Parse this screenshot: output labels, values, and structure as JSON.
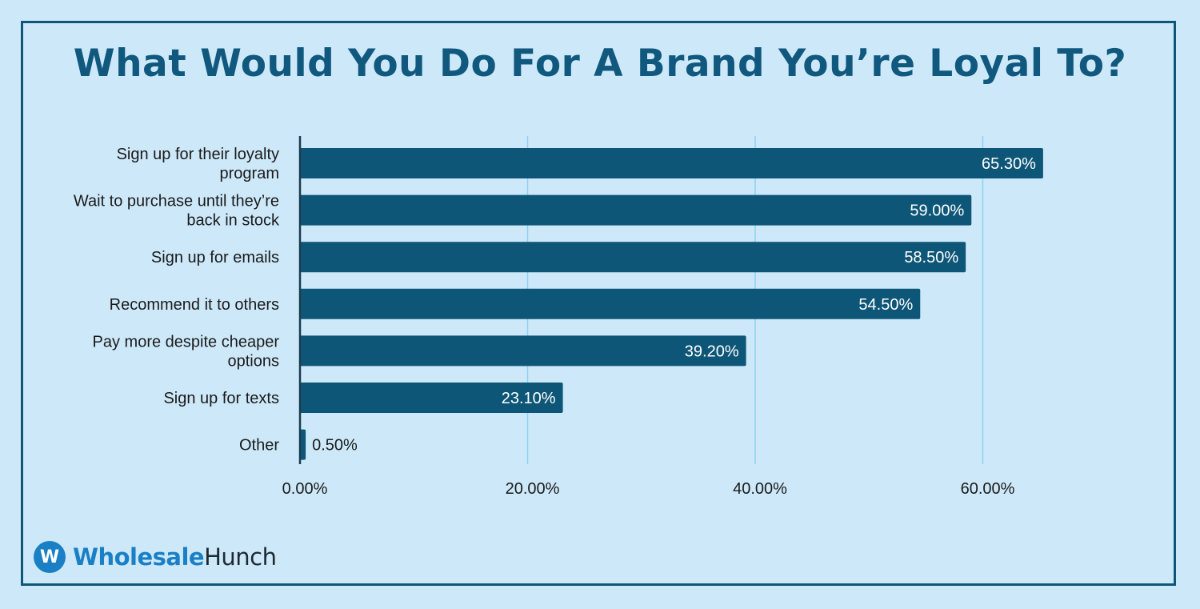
{
  "chart_data": {
    "type": "bar",
    "orientation": "horizontal",
    "title": "What Would You Do For A Brand You’re Loyal To?",
    "xlabel": "",
    "ylabel": "",
    "xlim": [
      0,
      70
    ],
    "x_ticks": [
      0,
      20,
      40,
      60
    ],
    "x_tick_labels": [
      "0.00%",
      "20.00%",
      "40.00%",
      "60.00%"
    ],
    "grid": true,
    "categories": [
      [
        "Sign up for their loyalty",
        "program"
      ],
      [
        "Wait to purchase until they’re",
        "back in stock"
      ],
      [
        "Sign up for emails"
      ],
      [
        "Recommend it to others"
      ],
      [
        "Pay more despite cheaper",
        "options"
      ],
      [
        "Sign up for texts"
      ],
      [
        "Other"
      ]
    ],
    "values": [
      65.3,
      59.0,
      58.5,
      54.5,
      39.2,
      23.1,
      0.5
    ],
    "value_labels": [
      "65.30%",
      "59.00%",
      "58.50%",
      "54.50%",
      "39.20%",
      "23.10%",
      "0.50%"
    ],
    "colors": {
      "bar": "#0e5677",
      "grid": "#8fd0f2",
      "axis": "#1b3a4e",
      "background": "#cde9f9",
      "title": "#10587e",
      "label": "#1a1a1a",
      "value_inside": "#ffffff",
      "value_outside": "#1a1a1a"
    }
  },
  "brand": {
    "logo_letter": "W",
    "name_part1": "Wholesale",
    "name_part2": "Hunch",
    "colors": {
      "primary": "#1a7fc4",
      "secondary": "#1e2a33"
    }
  }
}
